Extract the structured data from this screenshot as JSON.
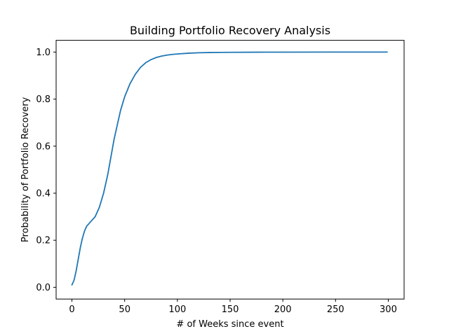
{
  "chart_data": {
    "type": "line",
    "title": "Building Portfolio Recovery Analysis",
    "xlabel": "# of Weeks since event",
    "ylabel": "Probability of Portfolio Recovery",
    "xlim": [
      -15,
      315
    ],
    "ylim": [
      -0.05,
      1.05
    ],
    "xticks": [
      0,
      50,
      100,
      150,
      200,
      250,
      300
    ],
    "yticks": [
      0.0,
      0.2,
      0.4,
      0.6,
      0.8,
      1.0
    ],
    "ytick_labels": [
      "0.0",
      "0.2",
      "0.4",
      "0.6",
      "0.8",
      "1.0"
    ],
    "grid": false,
    "series": [
      {
        "color": "#1f77b4",
        "x": [
          0,
          2,
          4,
          6,
          8,
          10,
          12,
          14,
          16,
          18,
          20,
          22,
          24,
          26,
          28,
          30,
          32,
          34,
          36,
          38,
          40,
          42,
          44,
          46,
          48,
          50,
          55,
          60,
          65,
          70,
          75,
          80,
          85,
          90,
          95,
          100,
          110,
          120,
          130,
          140,
          150,
          175,
          200,
          250,
          299
        ],
        "y": [
          0.01,
          0.03,
          0.07,
          0.12,
          0.17,
          0.21,
          0.24,
          0.26,
          0.27,
          0.28,
          0.29,
          0.3,
          0.32,
          0.34,
          0.37,
          0.4,
          0.44,
          0.48,
          0.53,
          0.58,
          0.63,
          0.67,
          0.71,
          0.75,
          0.78,
          0.81,
          0.865,
          0.905,
          0.935,
          0.955,
          0.968,
          0.977,
          0.983,
          0.987,
          0.99,
          0.992,
          0.995,
          0.997,
          0.998,
          0.9985,
          0.999,
          0.9995,
          0.9998,
          1.0,
          1.0
        ]
      }
    ]
  }
}
